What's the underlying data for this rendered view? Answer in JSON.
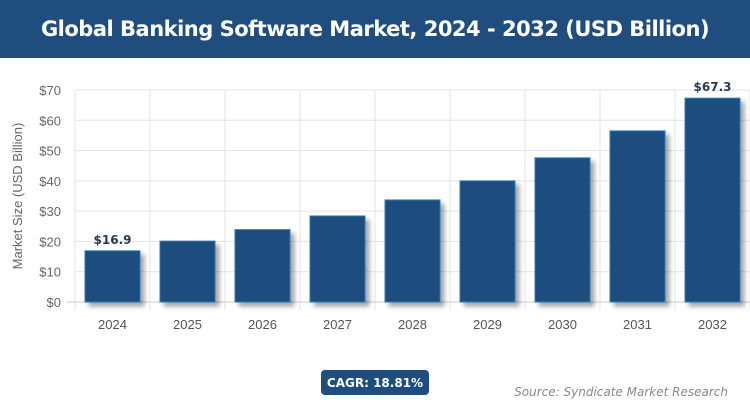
{
  "chart_data": {
    "type": "bar",
    "title": "Global Banking Software Market, 2024 - 2032 (USD Billion)",
    "ylabel": "Market Size (USD Billion)",
    "xlabel": "",
    "categories": [
      "2024",
      "2025",
      "2026",
      "2027",
      "2028",
      "2029",
      "2030",
      "2031",
      "2032"
    ],
    "values": [
      16.9,
      20.1,
      23.9,
      28.4,
      33.7,
      40.0,
      47.6,
      56.5,
      67.3
    ],
    "data_labels": {
      "0": "$16.9",
      "8": "$67.3"
    },
    "ylim": [
      0,
      70
    ],
    "yticks": [
      "$0",
      "$10",
      "$20",
      "$30",
      "$40",
      "$50",
      "$60",
      "$70"
    ],
    "grid": true,
    "bar_color": "#1f4e7e"
  },
  "cagr_label": "CAGR: 18.81%",
  "source": "Source: Syndicate Market Research"
}
